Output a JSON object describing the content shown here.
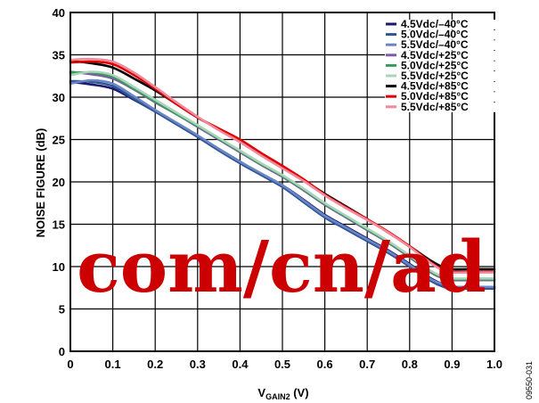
{
  "chart_data": {
    "type": "line",
    "title": "",
    "xlabel": "V",
    "xlabel_subscript": "GAIN2",
    "xlabel_unit": " (V)",
    "ylabel": "NOISE FIGURE (dB)",
    "xlim": [
      0,
      1.0
    ],
    "ylim": [
      0,
      40
    ],
    "x_ticks": [
      "0",
      "0.1",
      "0.2",
      "0.3",
      "0.4",
      "0.5",
      "0.6",
      "0.7",
      "0.8",
      "0.9",
      "1.0"
    ],
    "y_ticks": [
      "0",
      "5",
      "10",
      "15",
      "20",
      "25",
      "30",
      "35",
      "40"
    ],
    "grid": true,
    "legend_position": "top-right",
    "x": [
      0,
      0.05,
      0.1,
      0.15,
      0.2,
      0.25,
      0.3,
      0.35,
      0.4,
      0.45,
      0.5,
      0.55,
      0.6,
      0.65,
      0.7,
      0.75,
      0.8,
      0.85,
      0.88,
      0.9,
      0.95,
      1.0
    ],
    "series": [
      {
        "name": "4.5Vdc/–40°C",
        "color": "#1a1a6e",
        "values": [
          31.8,
          31.5,
          31.0,
          29.7,
          28.3,
          26.9,
          25.4,
          23.9,
          22.4,
          20.9,
          19.6,
          17.9,
          16.1,
          14.7,
          13.3,
          11.9,
          10.3,
          8.6,
          7.9,
          7.6,
          7.6,
          7.6
        ]
      },
      {
        "name": "5.0Vdc/–40°C",
        "color": "#2f5597",
        "values": [
          31.9,
          31.8,
          31.3,
          29.8,
          28.3,
          26.8,
          25.3,
          23.7,
          22.2,
          20.8,
          19.4,
          17.6,
          15.8,
          14.4,
          13.0,
          11.6,
          10.0,
          8.3,
          7.6,
          7.4,
          7.4,
          7.4
        ]
      },
      {
        "name": "5.5Vdc/–40°C",
        "color": "#6a86c4",
        "values": [
          31.6,
          32.0,
          31.6,
          30.1,
          28.5,
          27.0,
          25.5,
          23.9,
          22.4,
          21.0,
          19.6,
          17.8,
          16.0,
          14.6,
          13.2,
          11.8,
          10.2,
          8.5,
          7.9,
          7.6,
          7.6,
          7.6
        ]
      },
      {
        "name": "4.5Vdc/+25°C",
        "color": "#7e5ba8",
        "values": [
          33.0,
          32.7,
          32.2,
          30.9,
          29.4,
          28.0,
          26.5,
          25.0,
          23.5,
          22.0,
          20.6,
          19.0,
          17.3,
          15.8,
          14.3,
          12.8,
          11.1,
          9.3,
          8.6,
          8.4,
          8.4,
          8.4
        ]
      },
      {
        "name": "5.0Vdc/+25°C",
        "color": "#3a9a5c",
        "values": [
          32.9,
          32.9,
          32.4,
          31.0,
          29.5,
          28.0,
          26.6,
          25.1,
          23.6,
          22.1,
          20.7,
          19.1,
          17.4,
          15.9,
          14.4,
          12.9,
          11.2,
          9.4,
          8.7,
          8.5,
          8.5,
          8.5
        ]
      },
      {
        "name": "5.5Vdc/+25°C",
        "color": "#a8d5b8",
        "values": [
          32.6,
          33.0,
          32.6,
          31.2,
          29.7,
          28.2,
          26.7,
          25.2,
          23.7,
          22.2,
          20.8,
          19.2,
          17.5,
          16.0,
          14.5,
          13.0,
          11.3,
          9.5,
          8.8,
          8.6,
          8.6,
          8.6
        ]
      },
      {
        "name": "4.5Vdc/+85°C",
        "color": "#000000",
        "values": [
          34.3,
          34.0,
          33.5,
          32.2,
          30.8,
          29.2,
          27.6,
          26.2,
          24.8,
          23.2,
          21.7,
          20.2,
          18.6,
          17.1,
          15.6,
          14.0,
          12.4,
          10.7,
          9.9,
          9.7,
          9.7,
          9.7
        ]
      },
      {
        "name": "5.0Vdc/+85°C",
        "color": "#e00000",
        "values": [
          34.1,
          34.2,
          33.9,
          32.6,
          31.0,
          29.2,
          27.6,
          26.3,
          25.0,
          23.4,
          21.9,
          20.3,
          18.5,
          17.0,
          15.6,
          14.1,
          12.4,
          10.5,
          9.6,
          9.4,
          9.4,
          9.4
        ]
      },
      {
        "name": "5.5Vdc/+85°C",
        "color": "#f28a9c",
        "values": [
          34.4,
          34.5,
          34.2,
          32.9,
          31.2,
          29.4,
          27.7,
          26.1,
          24.7,
          23.1,
          21.6,
          20.1,
          18.4,
          16.9,
          15.5,
          14.0,
          12.3,
          10.4,
          9.5,
          9.3,
          9.3,
          9.3
        ]
      }
    ]
  },
  "watermark": "com/cn/ad",
  "figure_id": "09550-031"
}
